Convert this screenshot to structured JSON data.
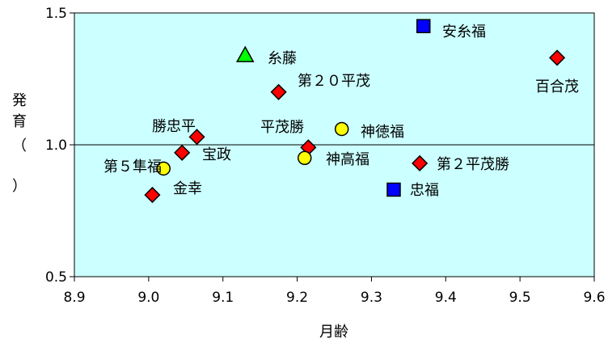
{
  "chart_data": {
    "type": "scatter",
    "title": "",
    "xlabel": "月齢",
    "ylabel": "発育（）",
    "ylabel_chars": [
      "発",
      "育",
      "（",
      "）"
    ],
    "xlim": [
      8.9,
      9.6
    ],
    "ylim": [
      0.5,
      1.5
    ],
    "xticks": [
      8.9,
      9.0,
      9.1,
      9.2,
      9.3,
      9.4,
      9.5,
      9.6
    ],
    "xtick_labels": [
      "8.9",
      "9.0",
      "9.1",
      "9.2",
      "9.3",
      "9.4",
      "9.5",
      "9.6"
    ],
    "yticks": [
      0.5,
      1.0,
      1.5
    ],
    "ytick_labels": [
      "0.5",
      "1.0",
      "1.5"
    ],
    "reference_line": 1.0,
    "grid": false,
    "legend": "none",
    "plot_background": "#ccffff",
    "points": [
      {
        "label": "安糸福",
        "x": 9.37,
        "y": 1.45,
        "marker": "square",
        "color": "#0000ff"
      },
      {
        "label": "糸藤",
        "x": 9.13,
        "y": 1.34,
        "marker": "triangle",
        "color": "#00ff00"
      },
      {
        "label": "百合茂",
        "x": 9.55,
        "y": 1.33,
        "marker": "diamond",
        "color": "#ff0000"
      },
      {
        "label": "第２０平茂",
        "x": 9.175,
        "y": 1.2,
        "marker": "diamond",
        "color": "#ff0000"
      },
      {
        "label": "神徳福",
        "x": 9.26,
        "y": 1.06,
        "marker": "circle",
        "color": "#ffff00"
      },
      {
        "label": "勝忠平",
        "x": 9.065,
        "y": 1.03,
        "marker": "diamond",
        "color": "#ff0000"
      },
      {
        "label": "平茂勝",
        "x": 9.215,
        "y": 0.99,
        "marker": "diamond",
        "color": "#ff0000"
      },
      {
        "label": "宝政",
        "x": 9.045,
        "y": 0.97,
        "marker": "diamond",
        "color": "#ff0000"
      },
      {
        "label": "神高福",
        "x": 9.21,
        "y": 0.95,
        "marker": "circle",
        "color": "#ffff00"
      },
      {
        "label": "第２平茂勝",
        "x": 9.365,
        "y": 0.93,
        "marker": "diamond",
        "color": "#ff0000"
      },
      {
        "label": "第５隼福",
        "x": 9.02,
        "y": 0.91,
        "marker": "circle",
        "color": "#ffff00"
      },
      {
        "label": "忠福",
        "x": 9.33,
        "y": 0.83,
        "marker": "square",
        "color": "#0000ff"
      },
      {
        "label": "金幸",
        "x": 9.005,
        "y": 0.81,
        "marker": "diamond",
        "color": "#ff0000"
      }
    ]
  }
}
